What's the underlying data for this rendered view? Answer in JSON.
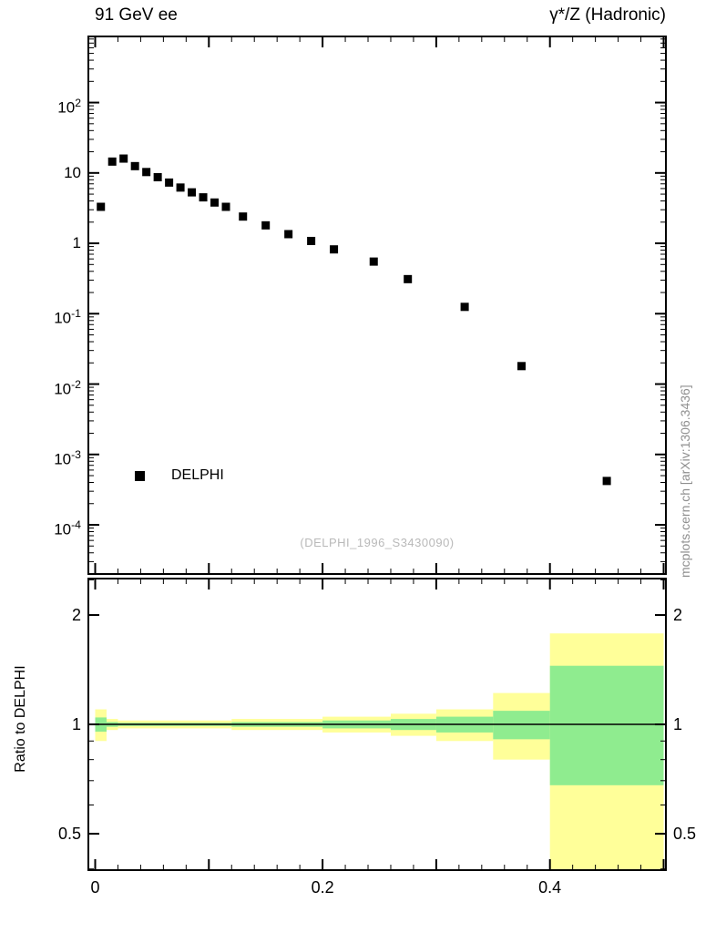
{
  "side_note": "mcplots.cern.ch [arXiv:1306.3436]",
  "colors": {
    "frame": "#000000",
    "marker": "#000000",
    "band_outer": "#ffff99",
    "band_inner": "#8fec8f",
    "watermark": "#b9b9b9",
    "side_note": "#8f8f8f"
  },
  "chart_data": [
    {
      "type": "scatter",
      "panel": "main",
      "title_left": "91 GeV ee",
      "title_right": "γ*/Z (Hadronic)",
      "watermark": "(DELPHI_1996_S3430090)",
      "xlabel": "",
      "ylabel": "",
      "xlim": [
        -0.006,
        0.502
      ],
      "ylog": true,
      "ylim": [
        2e-05,
        870
      ],
      "grid": false,
      "xticks_major": [
        0,
        0.1,
        0.2,
        0.3,
        0.4,
        0.5
      ],
      "xticks_minor_step": 0.02,
      "xtick_labels": [
        {
          "value": 0,
          "label": "0"
        },
        {
          "value": 0.2,
          "label": "0.2"
        },
        {
          "value": 0.4,
          "label": "0.4"
        }
      ],
      "ytick_labels": [
        {
          "value": 100,
          "label_base": "10",
          "label_exp": "2"
        },
        {
          "value": 10,
          "label_base": "10",
          "label_exp": ""
        },
        {
          "value": 1,
          "label_base": "1",
          "label_exp": ""
        },
        {
          "value": 0.1,
          "label_base": "10",
          "label_exp": "-1"
        },
        {
          "value": 0.01,
          "label_base": "10",
          "label_exp": "-2"
        },
        {
          "value": 0.001,
          "label_base": "10",
          "label_exp": "-3"
        },
        {
          "value": 0.0001,
          "label_base": "10",
          "label_exp": "-4"
        }
      ],
      "legend_position": "inside-left-lower",
      "series": [
        {
          "name": "DELPHI",
          "marker": "filled-square",
          "color": "#000000",
          "points": [
            [
              0.005,
              3.3
            ],
            [
              0.015,
              14.5
            ],
            [
              0.025,
              16.0
            ],
            [
              0.035,
              12.5
            ],
            [
              0.045,
              10.3
            ],
            [
              0.055,
              8.7
            ],
            [
              0.065,
              7.3
            ],
            [
              0.075,
              6.2
            ],
            [
              0.085,
              5.3
            ],
            [
              0.095,
              4.5
            ],
            [
              0.105,
              3.8
            ],
            [
              0.115,
              3.3
            ],
            [
              0.13,
              2.4
            ],
            [
              0.15,
              1.8
            ],
            [
              0.17,
              1.35
            ],
            [
              0.19,
              1.08
            ],
            [
              0.21,
              0.82
            ],
            [
              0.245,
              0.55
            ],
            [
              0.275,
              0.31
            ],
            [
              0.325,
              0.125
            ],
            [
              0.375,
              0.018
            ],
            [
              0.45,
              0.00042
            ]
          ]
        }
      ]
    },
    {
      "type": "ratio-bands",
      "panel": "ratio",
      "ylabel": "Ratio to DELPHI",
      "ylog": true,
      "ylim": [
        0.397,
        2.52
      ],
      "reference_line": 1,
      "ytick_labels": [
        {
          "value": 0.5,
          "label": "0.5"
        },
        {
          "value": 1,
          "label": "1"
        },
        {
          "value": 2,
          "label": "2"
        }
      ],
      "yticks_minor": [
        0.4,
        0.6,
        0.7,
        0.8,
        0.9,
        2.5
      ],
      "band_colors": {
        "outer": "#ffff99",
        "inner": "#8fec8f"
      },
      "bands": [
        {
          "x0": 0.0,
          "x1": 0.01,
          "outer": [
            0.9,
            1.1
          ],
          "inner": [
            0.955,
            1.045
          ]
        },
        {
          "x0": 0.01,
          "x1": 0.02,
          "outer": [
            0.965,
            1.035
          ],
          "inner": [
            0.985,
            1.015
          ]
        },
        {
          "x0": 0.02,
          "x1": 0.12,
          "outer": [
            0.975,
            1.025
          ],
          "inner": [
            0.99,
            1.01
          ]
        },
        {
          "x0": 0.12,
          "x1": 0.2,
          "outer": [
            0.965,
            1.035
          ],
          "inner": [
            0.985,
            1.015
          ]
        },
        {
          "x0": 0.2,
          "x1": 0.26,
          "outer": [
            0.95,
            1.05
          ],
          "inner": [
            0.975,
            1.025
          ]
        },
        {
          "x0": 0.26,
          "x1": 0.3,
          "outer": [
            0.93,
            1.07
          ],
          "inner": [
            0.965,
            1.035
          ]
        },
        {
          "x0": 0.3,
          "x1": 0.35,
          "outer": [
            0.9,
            1.1
          ],
          "inner": [
            0.95,
            1.05
          ]
        },
        {
          "x0": 0.35,
          "x1": 0.4,
          "outer": [
            0.8,
            1.22
          ],
          "inner": [
            0.91,
            1.09
          ]
        },
        {
          "x0": 0.4,
          "x1": 0.5,
          "outer": [
            0.35,
            1.78
          ],
          "inner": [
            0.68,
            1.45
          ]
        }
      ]
    }
  ]
}
